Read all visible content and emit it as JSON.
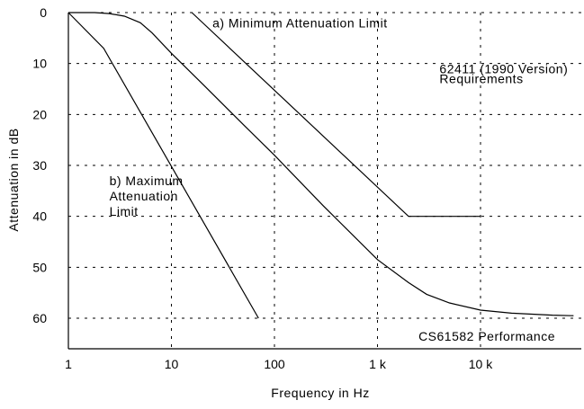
{
  "chart_data": {
    "type": "line",
    "title": "",
    "xlabel": "Frequency in Hz",
    "ylabel": "Attenuation in dB",
    "xscale": "log",
    "xlim": [
      1,
      80000
    ],
    "ylim": [
      0,
      67
    ],
    "y_inverted": true,
    "grid": true,
    "x_ticks": [
      {
        "value": 1,
        "label": "1"
      },
      {
        "value": 10,
        "label": "10"
      },
      {
        "value": 100,
        "label": "100"
      },
      {
        "value": 1000,
        "label": "1 k"
      },
      {
        "value": 10000,
        "label": "10 k"
      }
    ],
    "y_ticks": [
      {
        "value": 0,
        "label": "0"
      },
      {
        "value": 10,
        "label": "10"
      },
      {
        "value": 20,
        "label": "20"
      },
      {
        "value": 30,
        "label": "30"
      },
      {
        "value": 40,
        "label": "40"
      },
      {
        "value": 50,
        "label": "50"
      },
      {
        "value": 60,
        "label": "60"
      }
    ],
    "series": [
      {
        "x": [
          15.8,
          2000,
          10000
        ],
        "y": [
          0,
          40,
          40
        ]
      },
      {
        "x": [
          1,
          2.2,
          70
        ],
        "y": [
          0,
          7,
          60
        ]
      },
      {
        "x": [
          1,
          1.8,
          2.5,
          3.5,
          5,
          6.5,
          10,
          20,
          50,
          100,
          300,
          1000,
          2000,
          3000,
          5000,
          10000,
          20000,
          50000,
          80000
        ],
        "y": [
          0,
          0,
          0.2,
          0.7,
          2,
          4,
          8,
          14,
          22,
          28,
          38,
          48.5,
          53,
          55.3,
          57,
          58.4,
          59,
          59.4,
          59.5
        ]
      }
    ],
    "annotations": [
      {
        "label": "a) Minimum Attenuation Limit",
        "x": 25,
        "y": 2
      },
      {
        "label": "62411 (1990 Version)",
        "x": 4000,
        "y": 11
      },
      {
        "label": "Requirements",
        "x": 4000,
        "y": 13
      },
      {
        "label": "b) Maximum",
        "x": 2.5,
        "y": 33
      },
      {
        "label": "Attenuation",
        "x": 2.5,
        "y": 36
      },
      {
        "label": "Limit",
        "x": 2.5,
        "y": 39
      },
      {
        "label": "CS61582 Performance",
        "x": 2500,
        "y": 63.5
      }
    ]
  }
}
